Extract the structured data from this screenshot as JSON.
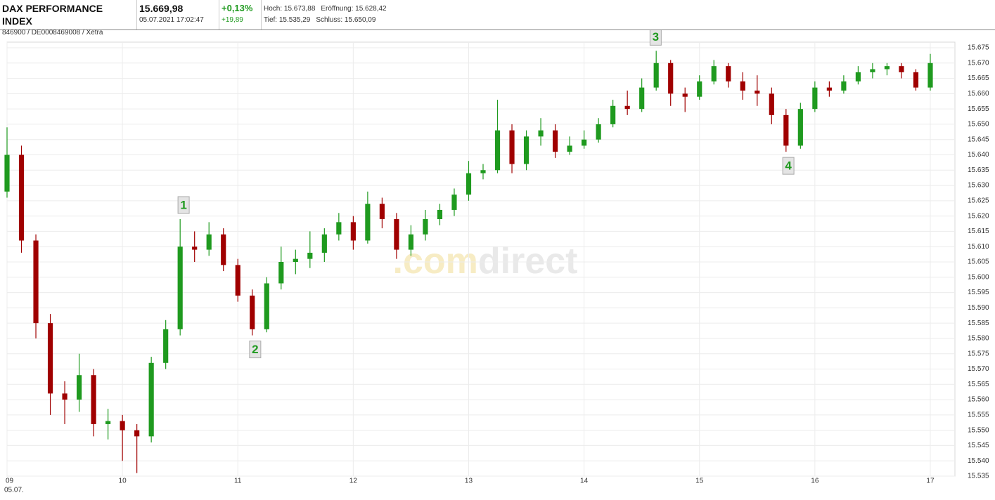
{
  "header": {
    "title": "DAX PERFORMANCE INDEX",
    "id": "846900 / DE0008469008 / Xetra",
    "price": "15.669,98",
    "timestamp": "05.07.2021 17:02:47",
    "change_pct": "+0,13%",
    "change_abs": "+19,89",
    "high": "Hoch: 15.673,88",
    "open": "Eröffnung: 15.628,42",
    "low": "Tief: 15.535,29",
    "close": "Schluss: 15.650,09"
  },
  "chart_data": {
    "type": "candlestick",
    "x": [
      9.0,
      9.125,
      9.25,
      9.375,
      9.5,
      9.625,
      9.75,
      9.875,
      10.0,
      10.125,
      10.25,
      10.375,
      10.5,
      10.625,
      10.75,
      10.875,
      11.0,
      11.125,
      11.25,
      11.375,
      11.5,
      11.625,
      11.75,
      11.875,
      12.0,
      12.125,
      12.25,
      12.375,
      12.5,
      12.625,
      12.75,
      12.875,
      13.0,
      13.125,
      13.25,
      13.375,
      13.5,
      13.625,
      13.75,
      13.875,
      14.0,
      14.125,
      14.25,
      14.375,
      14.5,
      14.625,
      14.75,
      14.875,
      15.0,
      15.125,
      15.25,
      15.375,
      15.5,
      15.625,
      15.75,
      15.875,
      16.0,
      16.125,
      16.25,
      16.375,
      16.5,
      16.625,
      16.75,
      16.875,
      17.0
    ],
    "open": [
      15628,
      15640,
      15612,
      15585,
      15562,
      15560,
      15568,
      15552,
      15553,
      15550,
      15548,
      15572,
      15583,
      15610,
      15609,
      15614,
      15604,
      15594,
      15583,
      15598,
      15605,
      15606,
      15608,
      15614,
      15618,
      15612,
      15624,
      15619,
      15609,
      15614,
      15619,
      15622,
      15627,
      15634,
      15635,
      15648,
      15637,
      15646,
      15648,
      15641,
      15643,
      15645,
      15650,
      15656,
      15655,
      15662,
      15670,
      15660,
      15659,
      15664,
      15669,
      15664,
      15661,
      15660,
      15653,
      15643,
      15655,
      15662,
      15661,
      15664,
      15667,
      15668,
      15669,
      15667,
      15662
    ],
    "high": [
      15649,
      15643,
      15614,
      15588,
      15566,
      15575,
      15570,
      15557,
      15555,
      15552,
      15574,
      15586,
      15619,
      15615,
      15618,
      15616,
      15606,
      15596,
      15600,
      15610,
      15609,
      15615,
      15616,
      15621,
      15620,
      15628,
      15626,
      15621,
      15617,
      15622,
      15624,
      15629,
      15638,
      15637,
      15658,
      15650,
      15648,
      15652,
      15650,
      15646,
      15648,
      15652,
      15658,
      15661,
      15665,
      15674,
      15671,
      15662,
      15666,
      15671,
      15670,
      15667,
      15666,
      15662,
      15655,
      15657,
      15664,
      15664,
      15666,
      15669,
      15670,
      15670,
      15670,
      15668,
      15673
    ],
    "low": [
      15626,
      15608,
      15580,
      15555,
      15552,
      15556,
      15548,
      15547,
      15540,
      15536,
      15546,
      15570,
      15581,
      15605,
      15607,
      15602,
      15592,
      15581,
      15582,
      15596,
      15601,
      15603,
      15605,
      15612,
      15609,
      15611,
      15616,
      15606,
      15607,
      15612,
      15617,
      15620,
      15625,
      15632,
      15634,
      15634,
      15635,
      15643,
      15639,
      15640,
      15642,
      15644,
      15649,
      15653,
      15654,
      15661,
      15656,
      15654,
      15658,
      15663,
      15662,
      15658,
      15656,
      15650,
      15641,
      15642,
      15654,
      15659,
      15660,
      15663,
      15665,
      15666,
      15665,
      15661,
      15661
    ],
    "close": [
      15640,
      15612,
      15585,
      15562,
      15560,
      15568,
      15552,
      15553,
      15550,
      15548,
      15572,
      15583,
      15610,
      15609,
      15614,
      15604,
      15594,
      15583,
      15598,
      15605,
      15606,
      15608,
      15614,
      15618,
      15612,
      15624,
      15619,
      15609,
      15614,
      15619,
      15622,
      15627,
      15634,
      15635,
      15648,
      15637,
      15646,
      15648,
      15641,
      15643,
      15645,
      15650,
      15656,
      15655,
      15662,
      15670,
      15660,
      15659,
      15664,
      15669,
      15664,
      15661,
      15660,
      15653,
      15643,
      15655,
      15662,
      15661,
      15664,
      15667,
      15668,
      15669,
      15667,
      15662,
      15670
    ],
    "up_color": "#1f9a1f",
    "down_color": "#a00000",
    "xlim": [
      9,
      17.2134
    ],
    "xticks": [
      {
        "value": 9,
        "label": "09"
      },
      10,
      11,
      12,
      13,
      14,
      15,
      16,
      17
    ],
    "x_date": "05.07.",
    "ylim": [
      15535,
      15675
    ],
    "yticks": [
      {
        "value": 15535,
        "label": "15.535"
      },
      {
        "value": 15540,
        "label": "15.540"
      },
      {
        "value": 15545,
        "label": "15.545"
      },
      {
        "value": 15550,
        "label": "15.550"
      },
      {
        "value": 15555,
        "label": "15.555"
      },
      {
        "value": 15560,
        "label": "15.560"
      },
      {
        "value": 15565,
        "label": "15.565"
      },
      {
        "value": 15570,
        "label": "15.570"
      },
      {
        "value": 15575,
        "label": "15.575"
      },
      {
        "value": 15580,
        "label": "15.580"
      },
      {
        "value": 15585,
        "label": "15.585"
      },
      {
        "value": 15590,
        "label": "15.590"
      },
      {
        "value": 15595,
        "label": "15.595"
      },
      {
        "value": 15600,
        "label": "15.600"
      },
      {
        "value": 15605,
        "label": "15.605"
      },
      {
        "value": 15610,
        "label": "15.610"
      },
      {
        "value": 15615,
        "label": "15.615"
      },
      {
        "value": 15620,
        "label": "15.620"
      },
      {
        "value": 15625,
        "label": "15.625"
      },
      {
        "value": 15630,
        "label": "15.630"
      },
      {
        "value": 15635,
        "label": "15.635"
      },
      {
        "value": 15640,
        "label": "15.640"
      },
      {
        "value": 15645,
        "label": "15.645"
      },
      {
        "value": 15650,
        "label": "15.650"
      },
      {
        "value": 15655,
        "label": "15.655"
      },
      {
        "value": 15660,
        "label": "15.660"
      },
      {
        "value": 15665,
        "label": "15.665"
      },
      {
        "value": 15670,
        "label": "15.670"
      },
      {
        "value": 15675,
        "label": "15.675"
      }
    ],
    "grid": true,
    "watermark": [
      ".com",
      "direct"
    ],
    "annotations": [
      {
        "label": "1",
        "x": 10.53,
        "y": 15619,
        "anchor": "above"
      },
      {
        "label": "2",
        "x": 11.15,
        "y": 15581,
        "anchor": "below"
      },
      {
        "label": "3",
        "x": 14.62,
        "y": 15674,
        "anchor": "above"
      },
      {
        "label": "4",
        "x": 15.77,
        "y": 15641,
        "anchor": "below"
      }
    ]
  }
}
